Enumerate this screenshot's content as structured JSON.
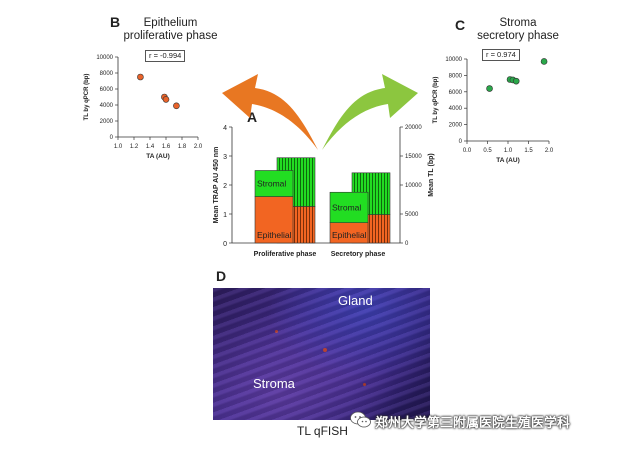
{
  "panel_b": {
    "letter": "B",
    "title_line1": "Epithelium",
    "title_line2": "proliferative phase",
    "r_label": "r = -0.994"
  },
  "panel_c": {
    "letter": "C",
    "title_line1": "Stroma",
    "title_line2": "secretory phase",
    "r_label": "r = 0.974"
  },
  "panel_a": {
    "letter": "A"
  },
  "panel_d": {
    "letter": "D",
    "gland_label": "Gland",
    "stroma_label": "Stroma",
    "caption": "TL qFISH"
  },
  "watermark": {
    "text": "郑州大学第三附属医院生殖医学科",
    "icon": "wechat-icon"
  },
  "colors": {
    "epithelial": "#f26522",
    "stromal": "#22dd22",
    "arrow_left": "#e87722",
    "arrow_right": "#8cc63f",
    "dot_b": "#e8632a",
    "dot_c": "#2aa84a"
  },
  "chart_data": [
    {
      "id": "B",
      "type": "scatter",
      "xlabel": "TA (AU)",
      "ylabel": "TL by qPCR (bp)",
      "xlim": [
        1.0,
        2.0
      ],
      "ylim": [
        0,
        10000
      ],
      "xticks": [
        "1.0",
        "1.2",
        "1.4",
        "1.6",
        "1.8",
        "2.0"
      ],
      "yticks": [
        "0",
        "2000",
        "4000",
        "6000",
        "8000",
        "10000"
      ],
      "points": [
        {
          "x": 1.28,
          "y": 7500
        },
        {
          "x": 1.58,
          "y": 5000
        },
        {
          "x": 1.6,
          "y": 4700
        },
        {
          "x": 1.73,
          "y": 3900
        }
      ]
    },
    {
      "id": "C",
      "type": "scatter",
      "xlabel": "TA (AU)",
      "ylabel": "TL by qPCR (bp)",
      "xlim": [
        0.0,
        2.0
      ],
      "ylim": [
        0,
        10000
      ],
      "xticks": [
        "0.0",
        "0.5",
        "1.0",
        "1.5",
        "2.0"
      ],
      "yticks": [
        "0",
        "2000",
        "4000",
        "6000",
        "8000",
        "10000"
      ],
      "points": [
        {
          "x": 0.55,
          "y": 6400
        },
        {
          "x": 1.05,
          "y": 7500
        },
        {
          "x": 1.12,
          "y": 7450
        },
        {
          "x": 1.2,
          "y": 7300
        },
        {
          "x": 1.88,
          "y": 9700
        }
      ]
    },
    {
      "id": "A",
      "type": "bar",
      "ylabel": "Mean TRAP AU 450 nm",
      "ylabel_right": "Mean TL (bp)",
      "categories": [
        "Proliferative phase",
        "Secretory phase"
      ],
      "ylim": [
        0,
        4
      ],
      "ylim_right": [
        0,
        20000
      ],
      "yticks": [
        "0",
        "1",
        "2",
        "3",
        "4"
      ],
      "yticks_right": [
        "0",
        "5000",
        "10000",
        "15000",
        "20000"
      ],
      "trap": [
        {
          "epithelial": 1.6,
          "stromal": 0.9
        },
        {
          "epithelial": 0.7,
          "stromal": 1.05
        }
      ],
      "tl": [
        {
          "epithelial": 6300,
          "stromal": 8400
        },
        {
          "epithelial": 4900,
          "stromal": 7200
        }
      ],
      "segment_labels": {
        "epithelial": "Epithelial",
        "stromal": "Stromal"
      }
    }
  ]
}
